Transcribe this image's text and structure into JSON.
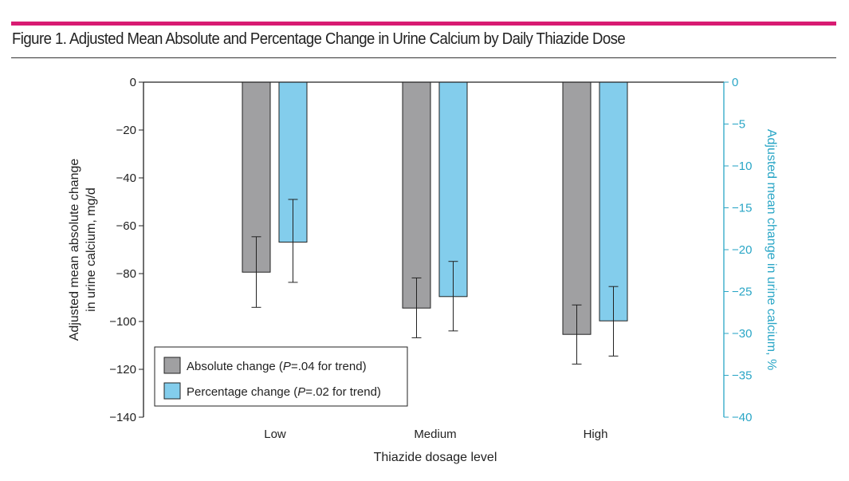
{
  "title": "Figure 1. Adjusted Mean Absolute and Percentage Change in Urine Calcium by Daily Thiazide Dose",
  "colors": {
    "accent_bar": "#d81b72",
    "absolute": "#a0a0a2",
    "percentage": "#83cdec",
    "right_axis": "#2aa6c6"
  },
  "chart_data": {
    "type": "bar",
    "categories": [
      "Low",
      "Medium",
      "High"
    ],
    "xlabel": "Thiazide dosage level",
    "ylabel": "Adjusted mean absolute change in urine calcium, mg/d",
    "ylabel_lines": [
      "Adjusted mean absolute change",
      "in urine calcium, mg/d"
    ],
    "y2label": "Adjusted mean change in urine calcium, %",
    "ylim": [
      -140,
      0
    ],
    "y2lim": [
      -40,
      0
    ],
    "yticks": [
      0,
      -20,
      -40,
      -60,
      -80,
      -100,
      -120,
      -140
    ],
    "y2ticks": [
      0,
      -5,
      -10,
      -15,
      -20,
      -25,
      -30,
      -35,
      -40
    ],
    "grid": false,
    "legend_position": "bottom-left",
    "series": [
      {
        "name": "Absolute change (P=.04 for trend)",
        "legend_prefix": "Absolute change (",
        "legend_p": "P",
        "legend_suffix": "=.04 for trend)",
        "axis": "left",
        "values": [
          -79.4,
          -94.4,
          -105.4
        ],
        "ci_upper": [
          -64.6,
          -81.8,
          -93.1
        ],
        "ci_lower": [
          -94.1,
          -106.8,
          -117.8
        ]
      },
      {
        "name": "Percentage change (P=.02 for trend)",
        "legend_prefix": "Percentage change (",
        "legend_p": "P",
        "legend_suffix": "=.02 for trend)",
        "axis": "right",
        "values": [
          -19.1,
          -25.6,
          -28.5
        ],
        "ci_upper": [
          -14.0,
          -21.4,
          -24.4
        ],
        "ci_lower": [
          -23.9,
          -29.7,
          -32.7
        ]
      }
    ]
  }
}
